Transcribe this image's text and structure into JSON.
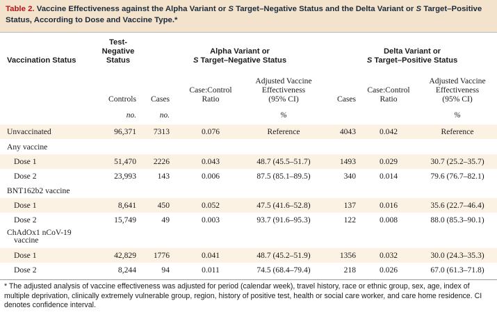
{
  "title": {
    "label": "Table 2.",
    "segments": [
      {
        "t": " Vaccine Effectiveness against the Alpha Variant or ",
        "i": false
      },
      {
        "t": "S",
        "i": true
      },
      {
        "t": " Target–Negative Status and the Delta Variant or ",
        "i": false
      },
      {
        "t": "S",
        "i": true
      },
      {
        "t": " Target–Positive Status, According to Dose and Vaccine Type.*",
        "i": false
      }
    ]
  },
  "headers": {
    "vaccination_status": "Vaccination Status",
    "test_negative_line1": "Test-",
    "test_negative_line2": "Negative",
    "test_negative_line3": "Status",
    "alpha_line1": "Alpha Variant or",
    "alpha_line2_s": "S",
    "alpha_line2_rest": " Target–Negative Status",
    "delta_line1": "Delta Variant or",
    "delta_line2_s": "S",
    "delta_line2_rest": " Target–Positive Status",
    "controls": "Controls",
    "cases": "Cases",
    "ratio_line1": "Case:Control",
    "ratio_line2": "Ratio",
    "ave_line1": "Adjusted Vaccine",
    "ave_line2": "Effectiveness",
    "ave_line3": "(95% CI)",
    "delta_cases": "Cases",
    "delta_ratio_line1": "Case:Control",
    "delta_ratio_line2": "Ratio",
    "delta_ave_line1": "Adjusted Vaccine",
    "delta_ave_line2": "Effectiveness",
    "delta_ave_line3": "(95% CI)"
  },
  "units": {
    "controls": "no.",
    "cases": "no.",
    "alpha_ave": "%",
    "delta_ave": "%"
  },
  "rows": [
    {
      "label": "Unvaccinated",
      "controls": "96,371",
      "cases": "7313",
      "alpha_ratio": "0.076",
      "alpha_ave": "Reference",
      "delta_cases": "4043",
      "delta_ratio": "0.042",
      "delta_ave": "Reference"
    },
    {
      "label": "Any vaccine",
      "controls": "",
      "cases": "",
      "alpha_ratio": "",
      "alpha_ave": "",
      "delta_cases": "",
      "delta_ratio": "",
      "delta_ave": ""
    },
    {
      "label": "Dose 1",
      "controls": "51,470",
      "cases": "2226",
      "alpha_ratio": "0.043",
      "alpha_ave": "48.7 (45.5–51.7)",
      "delta_cases": "1493",
      "delta_ratio": "0.029",
      "delta_ave": "30.7 (25.2–35.7)"
    },
    {
      "label": "Dose 2",
      "controls": "23,993",
      "cases": "143",
      "alpha_ratio": "0.006",
      "alpha_ave": "87.5 (85.1–89.5)",
      "delta_cases": "340",
      "delta_ratio": "0.014",
      "delta_ave": "79.6 (76.7–82.1)"
    },
    {
      "label": "BNT162b2 vaccine",
      "controls": "",
      "cases": "",
      "alpha_ratio": "",
      "alpha_ave": "",
      "delta_cases": "",
      "delta_ratio": "",
      "delta_ave": ""
    },
    {
      "label": "Dose 1",
      "controls": "8,641",
      "cases": "450",
      "alpha_ratio": "0.052",
      "alpha_ave": "47.5 (41.6–52.8)",
      "delta_cases": "137",
      "delta_ratio": "0.016",
      "delta_ave": "35.6 (22.7–46.4)"
    },
    {
      "label": "Dose 2",
      "controls": "15,749",
      "cases": "49",
      "alpha_ratio": "0.003",
      "alpha_ave": "93.7 (91.6–95.3)",
      "delta_cases": "122",
      "delta_ratio": "0.008",
      "delta_ave": "88.0 (85.3–90.1)"
    },
    {
      "label": "ChAdOx1 nCoV-19",
      "controls": "",
      "cases": "",
      "alpha_ratio": "",
      "alpha_ave": "",
      "delta_cases": "",
      "delta_ratio": "",
      "delta_ave": ""
    },
    {
      "label": "vaccine",
      "controls": "",
      "cases": "",
      "alpha_ratio": "",
      "alpha_ave": "",
      "delta_cases": "",
      "delta_ratio": "",
      "delta_ave": ""
    },
    {
      "label": "Dose 1",
      "controls": "42,829",
      "cases": "1776",
      "alpha_ratio": "0.041",
      "alpha_ave": "48.7 (45.2–51.9)",
      "delta_cases": "1356",
      "delta_ratio": "0.032",
      "delta_ave": "30.0 (24.3–35.3)"
    },
    {
      "label": "Dose 2",
      "controls": "8,244",
      "cases": "94",
      "alpha_ratio": "0.011",
      "alpha_ave": "74.5 (68.4–79.4)",
      "delta_cases": "218",
      "delta_ratio": "0.026",
      "delta_ave": "67.0 (61.3–71.8)"
    }
  ],
  "footnote": "* The adjusted analysis of vaccine effectiveness was adjusted for period (calendar week), travel history, race or ethnic group, sex, age, index of multiple deprivation, clinically extremely vulnerable group, region, history of positive test, health or social care worker, and care home residence. CI denotes confidence interval."
}
